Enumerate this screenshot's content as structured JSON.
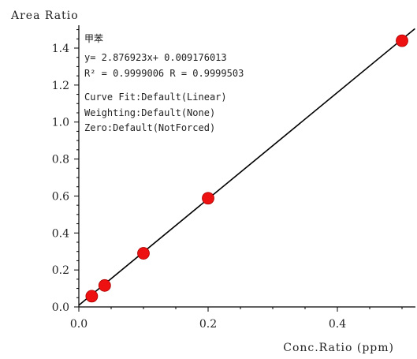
{
  "chart_data": {
    "type": "scatter",
    "ylabel": "Area Ratio",
    "xlabel": "Conc.Ratio (ppm)",
    "xlim": [
      0.0,
      0.52
    ],
    "ylim": [
      0.0,
      1.5
    ],
    "x_ticks": [
      0.0,
      0.2,
      0.4
    ],
    "x_tick_labels": [
      "0.0",
      "0.2",
      "0.4"
    ],
    "y_ticks": [
      0.0,
      0.2,
      0.4,
      0.6,
      0.8,
      1.0,
      1.2,
      1.4
    ],
    "y_tick_labels": [
      "0.0",
      "0.2",
      "0.4",
      "0.6",
      "0.8",
      "1.0",
      "1.2",
      "1.4"
    ],
    "points": [
      {
        "x": 0.02,
        "y": 0.058
      },
      {
        "x": 0.04,
        "y": 0.116
      },
      {
        "x": 0.1,
        "y": 0.29
      },
      {
        "x": 0.2,
        "y": 0.588
      },
      {
        "x": 0.5,
        "y": 1.44
      }
    ],
    "fit_line": {
      "slope": 2.876923,
      "intercept": 0.009176013,
      "x_start": 0.0,
      "x_end": 0.52
    },
    "annotation_lines": [
      "甲苯",
      "y= 2.876923x+ 0.009176013",
      "R² = 0.9999006   R = 0.9999503",
      "",
      "Curve Fit:Default(Linear)",
      "Weighting:Default(None)",
      "Zero:Default(NotForced)"
    ],
    "grid": false,
    "point_color": "#ee1111",
    "line_color": "#000000"
  }
}
